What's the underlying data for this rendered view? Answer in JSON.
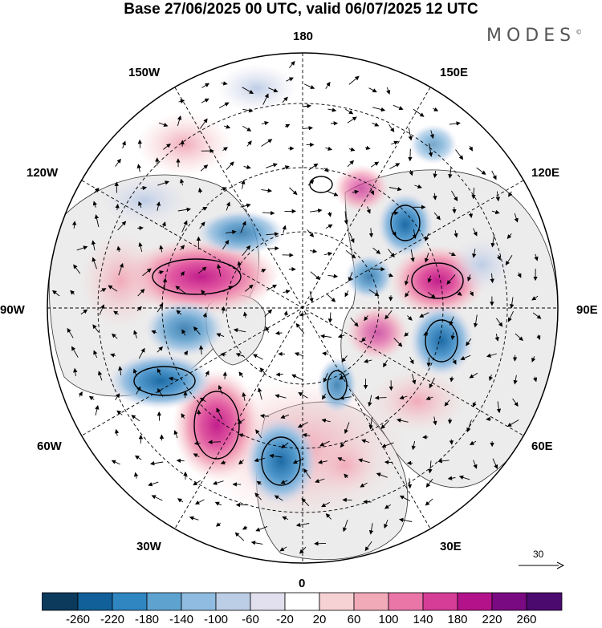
{
  "title": "Base 27/06/2025 00 UTC, valid 06/07/2025 12 UTC",
  "brand": {
    "name": "MODES",
    "mark": "©"
  },
  "map": {
    "projection": "north-polar-stereographic",
    "field": "anomaly",
    "longitude_labels": [
      "180",
      "150E",
      "120E",
      "90E",
      "60E",
      "30E",
      "0",
      "30W",
      "60W",
      "90W",
      "120W",
      "150W"
    ],
    "wind_reference": {
      "value": "30"
    },
    "centers": [
      {
        "name": "pos-center-north-atlantic",
        "sign": "+",
        "peak": 200
      },
      {
        "name": "pos-center-canada",
        "sign": "+",
        "peak": 220
      },
      {
        "name": "pos-center-siberia",
        "sign": "+",
        "peak": 160
      },
      {
        "name": "neg-center-europe-west",
        "sign": "-",
        "peak": -200
      },
      {
        "name": "neg-center-hudson",
        "sign": "-",
        "peak": -180
      },
      {
        "name": "neg-center-east-siberia",
        "sign": "-",
        "peak": -180
      }
    ]
  },
  "colorbar": {
    "ticks": [
      "-260",
      "-220",
      "-180",
      "-140",
      "-100",
      "-60",
      "-20",
      "20",
      "60",
      "100",
      "140",
      "180",
      "220",
      "260"
    ],
    "colors": [
      "#0b3a5c",
      "#12609a",
      "#2f86c0",
      "#5ea2d0",
      "#8fbce0",
      "#bccde6",
      "#e2e0ee",
      "#ffffff",
      "#f6d2d4",
      "#f1aab8",
      "#ea76a8",
      "#d63d97",
      "#b4128a",
      "#7a0a82",
      "#4b0a6e"
    ]
  }
}
